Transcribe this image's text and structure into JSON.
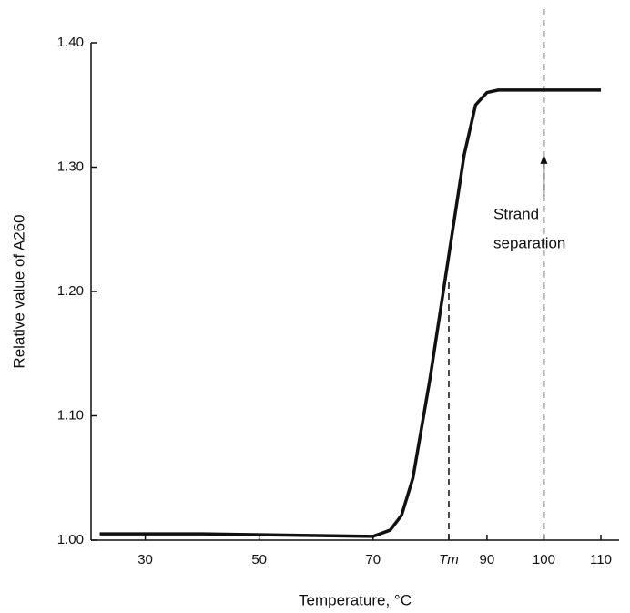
{
  "chart_data": {
    "type": "line",
    "xlabel": "Temperature, °C",
    "ylabel": "Relative value of A260",
    "x": [
      22,
      40,
      70,
      73,
      75,
      77,
      80,
      83,
      86,
      88,
      90,
      92,
      95,
      110
    ],
    "series": [
      {
        "color": "#111111",
        "values": [
          1.005,
          1.005,
          1.003,
          1.008,
          1.02,
          1.05,
          1.13,
          1.22,
          1.31,
          1.35,
          1.36,
          1.362,
          1.362,
          1.362
        ]
      }
    ],
    "xlim": [
      20,
      110
    ],
    "ylim": [
      1.0,
      1.4
    ],
    "xticks": [
      30,
      50,
      70,
      {
        "value": 83.3,
        "label": "Tm"
      },
      90,
      100,
      110
    ],
    "yticks": [
      {
        "value": 1.0,
        "label": "1.00"
      },
      {
        "value": 1.1,
        "label": "1.10"
      },
      {
        "value": 1.2,
        "label": "1.20"
      },
      {
        "value": 1.3,
        "label": "1.30"
      },
      {
        "value": 1.4,
        "label": "1.40"
      }
    ],
    "vlines": [
      {
        "x": 83.3,
        "ytop": 1.21
      },
      {
        "x": 100,
        "ytop": 1.43
      }
    ],
    "annotation": {
      "lines": [
        "Strand",
        "separation"
      ],
      "x": 100,
      "from": 1.277,
      "to": 1.31
    }
  }
}
